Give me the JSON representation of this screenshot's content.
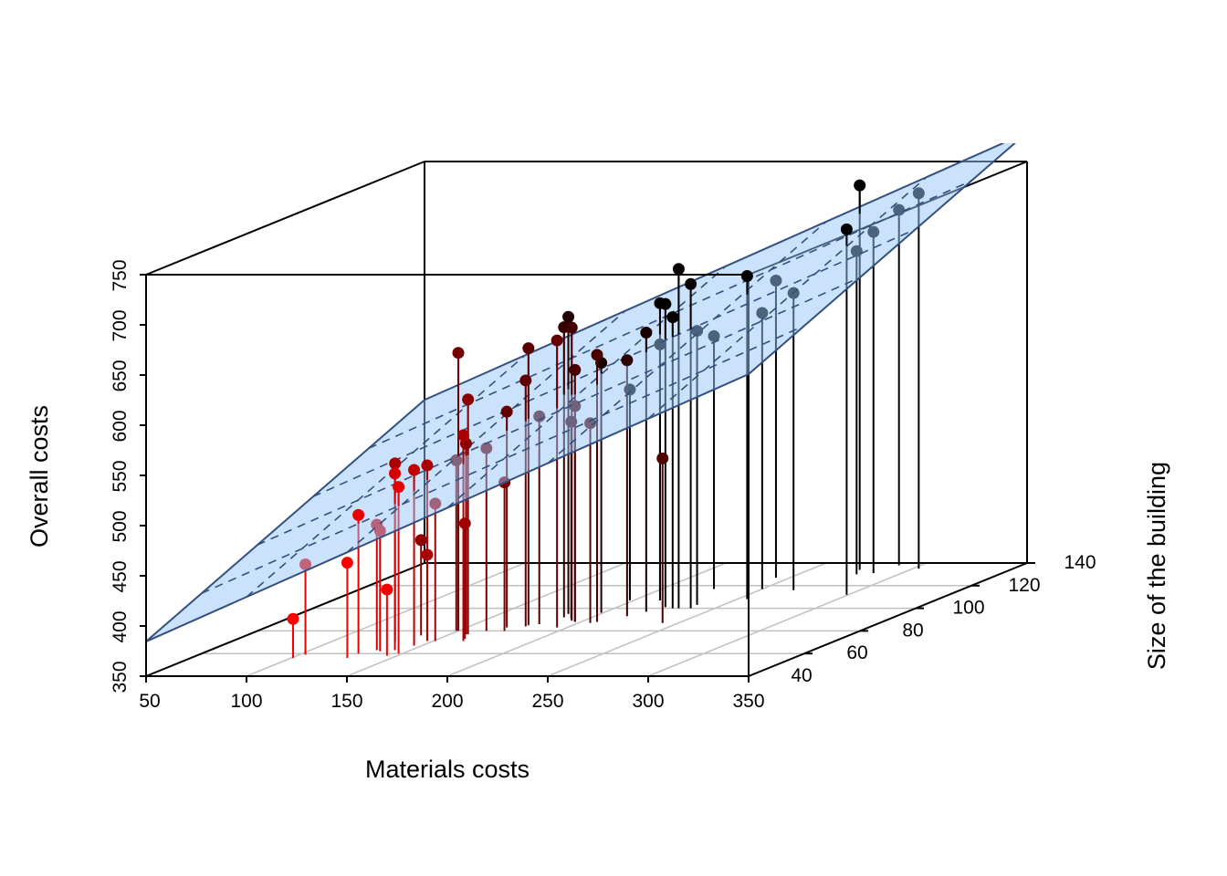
{
  "chart_data": {
    "type": "scatter3d",
    "title": "",
    "xlabel": "Materials costs",
    "ylabel": "Size of the building",
    "zlabel": "Overall costs",
    "xlim": [
      50,
      350
    ],
    "ylim": [
      40,
      140
    ],
    "zlim": [
      350,
      750
    ],
    "xticks": [
      "50",
      "100",
      "150",
      "200",
      "250",
      "300",
      "350"
    ],
    "yticks": [
      "40",
      "60",
      "80",
      "100",
      "120",
      "140"
    ],
    "zticks": [
      "350",
      "400",
      "450",
      "500",
      "550",
      "600",
      "650",
      "700",
      "750"
    ],
    "grid": true,
    "drop_lines": true,
    "point_color_by_depth": {
      "near": "#ff0000",
      "far": "#000000"
    },
    "regression_plane": {
      "intercept": 288.9,
      "coef_x": 0.888,
      "coef_y": 1.28,
      "fill": "#cce5ff",
      "line_color": "#34507f"
    },
    "points": [
      [
        101,
        56,
        389
      ],
      [
        103,
        59,
        440
      ],
      [
        128,
        56,
        445
      ],
      [
        128,
        60,
        488
      ],
      [
        145,
        58,
        416
      ],
      [
        133,
        63,
        475
      ],
      [
        136,
        62,
        470
      ],
      [
        131,
        71,
        527
      ],
      [
        142,
        63,
        526
      ],
      [
        148,
        60,
        516
      ],
      [
        146,
        67,
        525
      ],
      [
        137,
        76,
        445
      ],
      [
        147,
        71,
        525
      ],
      [
        147,
        71,
        436
      ],
      [
        151,
        71,
        487
      ],
      [
        150,
        80,
        627
      ],
      [
        159,
        77,
        584
      ],
      [
        165,
        71,
        555
      ],
      [
        158,
        77,
        540
      ],
      [
        163,
        73,
        465
      ],
      [
        149,
        80,
        520
      ],
      [
        164,
        80,
        532
      ],
      [
        173,
        80,
        498
      ],
      [
        170,
        83,
        565
      ],
      [
        178,
        85,
        626
      ],
      [
        178,
        84,
        595
      ],
      [
        182,
        86,
        557
      ],
      [
        195,
        83,
        636
      ],
      [
        184,
        95,
        646
      ],
      [
        186,
        92,
        639
      ],
      [
        194,
        89,
        642
      ],
      [
        197,
        88,
        601
      ],
      [
        197,
        88,
        565
      ],
      [
        191,
        91,
        546
      ],
      [
        206,
        87,
        549
      ],
      [
        208,
        88,
        616
      ],
      [
        199,
        96,
        599
      ],
      [
        216,
        93,
        605
      ],
      [
        198,
        107,
        560
      ],
      [
        220,
        97,
        628
      ],
      [
        213,
        107,
        646
      ],
      [
        224,
        101,
        652
      ],
      [
        229,
        100,
        640
      ],
      [
        213,
        107,
        605
      ],
      [
        242,
        87,
        514
      ],
      [
        232,
        100,
        688
      ],
      [
        238,
        100,
        673
      ],
      [
        237,
        103,
        623
      ],
      [
        226,
        117,
        602
      ],
      [
        255,
        108,
        672
      ],
      [
        250,
        117,
        625
      ],
      [
        243,
        127,
        646
      ],
      [
        267,
        116,
        646
      ],
      [
        299,
        112,
        714
      ],
      [
        275,
        134,
        733
      ],
      [
        279,
        130,
        672
      ],
      [
        286,
        131,
        690
      ],
      [
        289,
        138,
        704
      ],
      [
        303,
        135,
        724
      ]
    ]
  }
}
